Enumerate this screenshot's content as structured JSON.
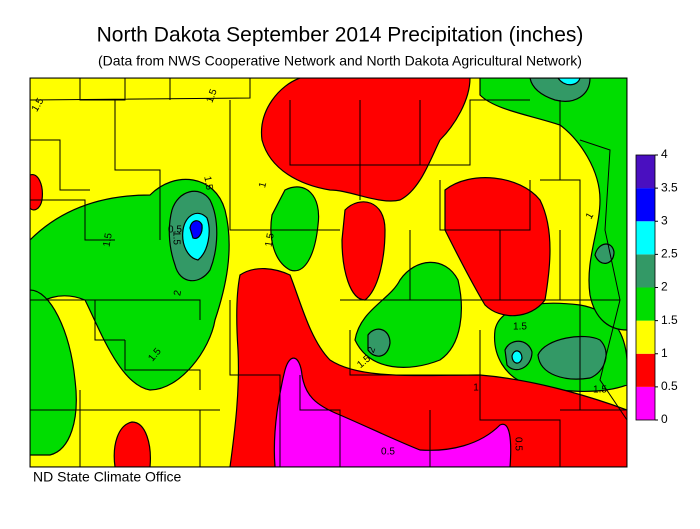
{
  "header": {
    "title": "North Dakota September 2014 Precipitation (inches)",
    "subtitle": "(Data from NWS Cooperative Network and North Dakota Agricultural Network)"
  },
  "colorbar": {
    "ticks": [
      0,
      0.5,
      1,
      1.5,
      2,
      2.5,
      3,
      3.5,
      4
    ],
    "colors": [
      "#ff00ff",
      "#ff0000",
      "#ffff00",
      "#00dd00",
      "#339966",
      "#00ffff",
      "#0000ff",
      "#4a0fc0"
    ]
  },
  "contour_labels": [
    "1.5",
    "1.5",
    "1.5",
    "1.5",
    "1",
    "1.5",
    "1.5",
    "0.5",
    "2",
    "1.5",
    "1.5",
    "2",
    "1",
    "0.5",
    "0.5",
    "1.5",
    "1.5",
    "1"
  ],
  "footer": {
    "credit": "ND State Climate Office"
  }
}
